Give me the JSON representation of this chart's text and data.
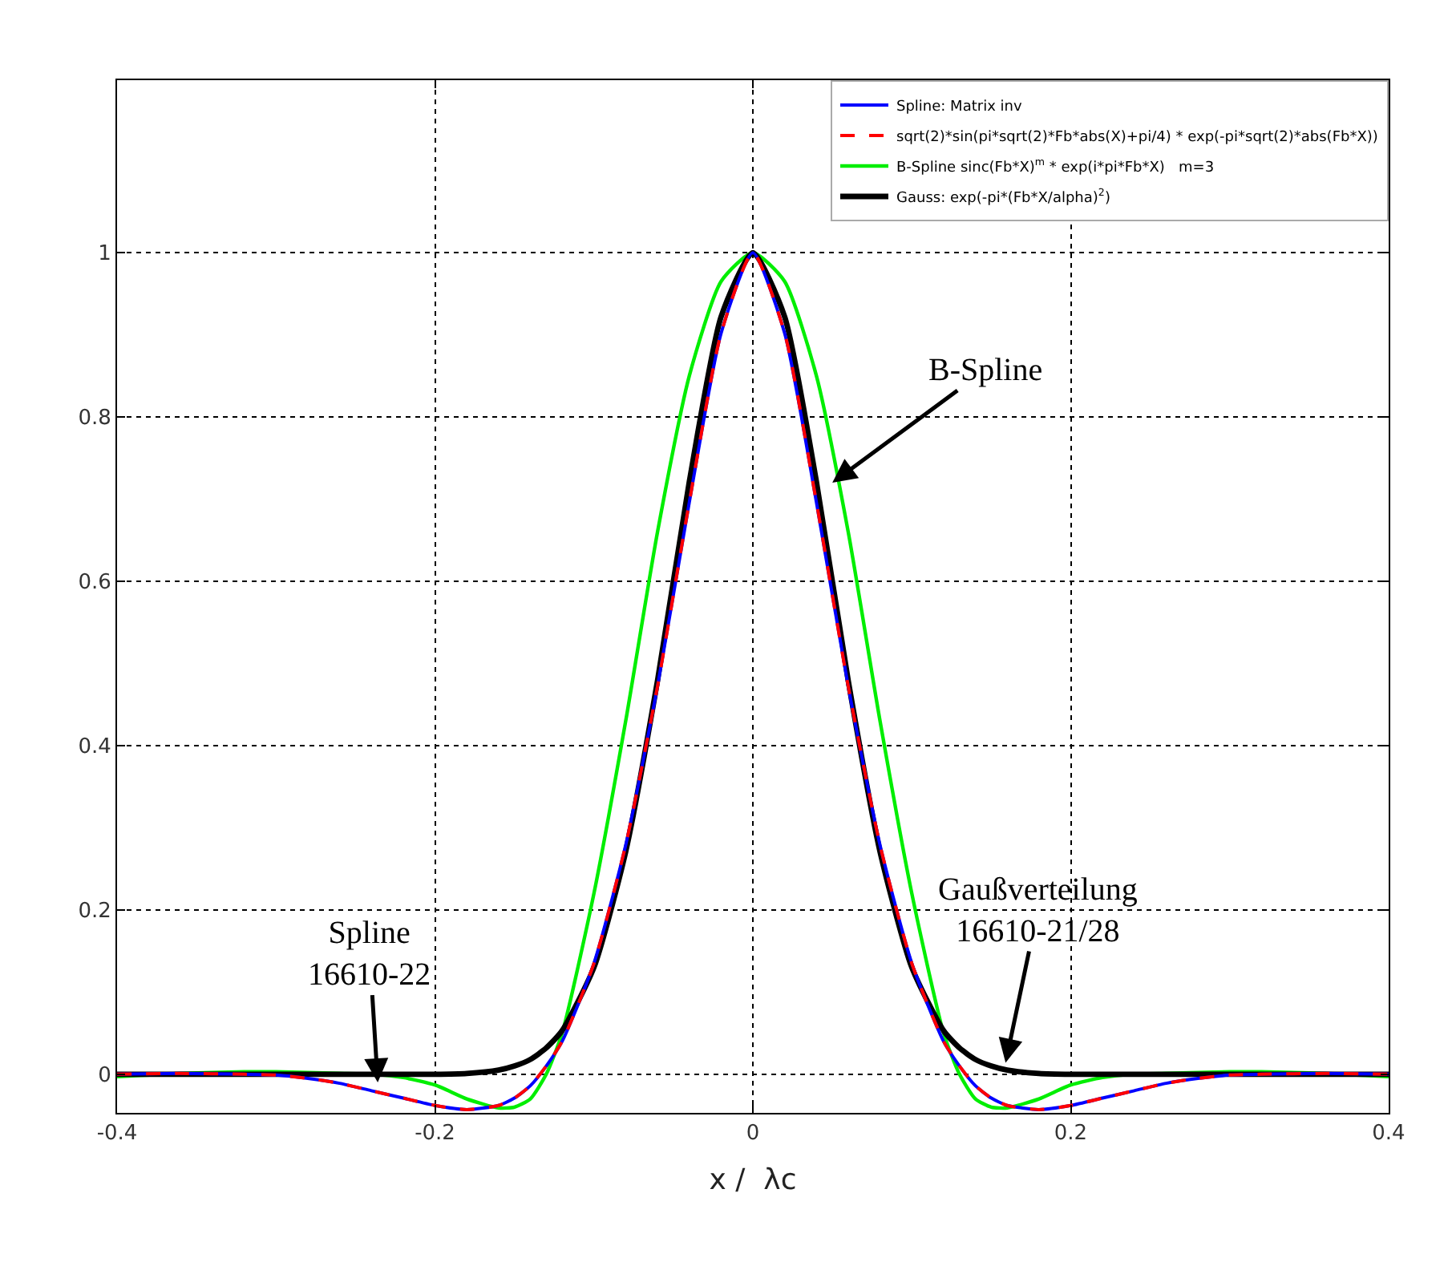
{
  "chart_data": {
    "type": "line",
    "xlabel": "x /  λc",
    "x": [
      -0.4,
      -0.36,
      -0.32,
      -0.3,
      -0.28,
      -0.26,
      -0.24,
      -0.22,
      -0.2,
      -0.18,
      -0.16,
      -0.15,
      -0.14,
      -0.13,
      -0.12,
      -0.1,
      -0.08,
      -0.06,
      -0.04,
      -0.02,
      0,
      0.02,
      0.04,
      0.06,
      0.08,
      0.1,
      0.12,
      0.13,
      0.14,
      0.15,
      0.16,
      0.18,
      0.2,
      0.22,
      0.24,
      0.26,
      0.28,
      0.3,
      0.32,
      0.36,
      0.4
    ],
    "series": [
      {
        "name": "Spline: Matrix inv",
        "color": "#0000ff",
        "line_style": "solid",
        "values": [
          0,
          0.001,
          0,
          -0.001,
          -0.005,
          -0.011,
          -0.02,
          -0.029,
          -0.038,
          -0.043,
          -0.038,
          -0.029,
          -0.014,
          0.01,
          0.04,
          0.135,
          0.279,
          0.472,
          0.696,
          0.902,
          1,
          0.902,
          0.696,
          0.472,
          0.279,
          0.135,
          0.04,
          0.01,
          -0.014,
          -0.029,
          -0.038,
          -0.043,
          -0.038,
          -0.029,
          -0.02,
          -0.011,
          -0.005,
          -0.001,
          0,
          0.001,
          0
        ]
      },
      {
        "name": "sqrt(2)*sin(pi*sqrt(2)*Fb*abs(X)+pi/4) * exp(-pi*sqrt(2)*abs(Fb*X))",
        "color": "#ff0000",
        "line_style": "dashed",
        "values": [
          0,
          0.001,
          0,
          -0.001,
          -0.005,
          -0.011,
          -0.02,
          -0.029,
          -0.038,
          -0.043,
          -0.038,
          -0.029,
          -0.014,
          0.01,
          0.04,
          0.135,
          0.279,
          0.472,
          0.696,
          0.902,
          1,
          0.902,
          0.696,
          0.472,
          0.279,
          0.135,
          0.04,
          0.01,
          -0.014,
          -0.029,
          -0.038,
          -0.043,
          -0.038,
          -0.029,
          -0.02,
          -0.011,
          -0.005,
          -0.001,
          0,
          0.001,
          0
        ]
      },
      {
        "name": "B-Spline sinc(Fb*X)$^{m}$ * exp(i*pi*Fb*X)   m=3",
        "color": "#00ee00",
        "line_style": "solid",
        "values": [
          -0.003,
          0.001,
          0.003,
          0.003,
          0.002,
          0.001,
          0,
          -0.004,
          -0.013,
          -0.03,
          -0.041,
          -0.04,
          -0.03,
          0,
          0.05,
          0.22,
          0.43,
          0.66,
          0.85,
          0.965,
          1,
          0.965,
          0.85,
          0.66,
          0.43,
          0.22,
          0.05,
          0,
          -0.03,
          -0.04,
          -0.041,
          -0.03,
          -0.013,
          -0.004,
          0,
          0.001,
          0.002,
          0.003,
          0.003,
          0.001,
          -0.003
        ]
      },
      {
        "name": "Gauss: exp(-pi*(Fb*X/alpha)$^{2}$)",
        "color": "#000000",
        "line_style": "solid",
        "values": [
          0,
          0,
          0,
          0,
          0,
          0,
          0,
          0,
          0,
          0.001,
          0.005,
          0.01,
          0.018,
          0.032,
          0.053,
          0.13,
          0.271,
          0.479,
          0.721,
          0.922,
          1,
          0.922,
          0.721,
          0.479,
          0.271,
          0.13,
          0.053,
          0.032,
          0.018,
          0.01,
          0.005,
          0.001,
          0,
          0,
          0,
          0,
          0,
          0,
          0,
          0,
          0
        ]
      }
    ],
    "xlim": [
      -0.4,
      0.4
    ],
    "xticks": [
      -0.4,
      -0.2,
      0,
      0.2,
      0.4
    ],
    "ylim": [
      -0.047,
      1.21
    ],
    "yticks": [
      0,
      0.2,
      0.4,
      0.6,
      0.8,
      1
    ],
    "grid": true,
    "legend": "top right",
    "marker": "none",
    "annotations": [
      {
        "text": "B-Spline",
        "x": 0.05,
        "y": 0.72
      },
      {
        "text": "Spline\n16610-22",
        "x": -0.236,
        "y": -0.01
      },
      {
        "text": "Gaußverteilung\n16610-21/28",
        "x": 0.159,
        "y": 0.014
      }
    ]
  }
}
